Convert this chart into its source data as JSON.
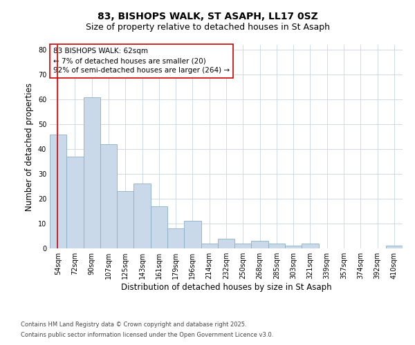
{
  "title1": "83, BISHOPS WALK, ST ASAPH, LL17 0SZ",
  "title2": "Size of property relative to detached houses in St Asaph",
  "xlabel": "Distribution of detached houses by size in St Asaph",
  "ylabel": "Number of detached properties",
  "categories": [
    "54sqm",
    "72sqm",
    "90sqm",
    "107sqm",
    "125sqm",
    "143sqm",
    "161sqm",
    "179sqm",
    "196sqm",
    "214sqm",
    "232sqm",
    "250sqm",
    "268sqm",
    "285sqm",
    "303sqm",
    "321sqm",
    "339sqm",
    "357sqm",
    "374sqm",
    "392sqm",
    "410sqm"
  ],
  "values": [
    46,
    37,
    61,
    42,
    23,
    26,
    17,
    8,
    11,
    2,
    4,
    2,
    3,
    2,
    1,
    2,
    0,
    0,
    0,
    0,
    1
  ],
  "bar_color": "#c9d9ea",
  "bar_edge_color": "#8aafc8",
  "background_color": "#ffffff",
  "grid_color": "#c8d4e0",
  "annotation_line1": "83 BISHOPS WALK: 62sqm",
  "annotation_line2": "← 7% of detached houses are smaller (20)",
  "annotation_line3": "92% of semi-detached houses are larger (264) →",
  "annotation_box_color": "#ffffff",
  "annotation_box_edge_color": "#cc0000",
  "property_line_color": "#cc0000",
  "ylim": [
    0,
    82
  ],
  "yticks": [
    0,
    10,
    20,
    30,
    40,
    50,
    60,
    70,
    80
  ],
  "footer1": "Contains HM Land Registry data © Crown copyright and database right 2025.",
  "footer2": "Contains public sector information licensed under the Open Government Licence v3.0.",
  "title_fontsize": 10,
  "subtitle_fontsize": 9,
  "tick_fontsize": 7,
  "label_fontsize": 8.5,
  "annotation_fontsize": 7.5,
  "footer_fontsize": 6
}
